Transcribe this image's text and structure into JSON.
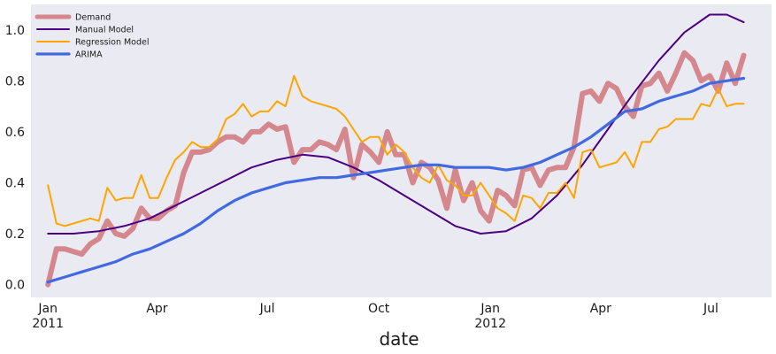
{
  "chart_data": {
    "type": "line",
    "title": "",
    "xlabel": "date",
    "ylabel": "",
    "ylim": [
      -0.05,
      1.1
    ],
    "grid": false,
    "legend_position": "top-left",
    "x_range": [
      "2010-12-18",
      "2012-08-20"
    ],
    "x_ticks": [
      {
        "date": "2011-01-01",
        "label": "Jan",
        "sublabel": "2011"
      },
      {
        "date": "2011-04-01",
        "label": "Apr",
        "sublabel": ""
      },
      {
        "date": "2011-07-01",
        "label": "Jul",
        "sublabel": ""
      },
      {
        "date": "2011-10-01",
        "label": "Oct",
        "sublabel": ""
      },
      {
        "date": "2012-01-01",
        "label": "Jan",
        "sublabel": "2012"
      },
      {
        "date": "2012-04-01",
        "label": "Apr",
        "sublabel": ""
      },
      {
        "date": "2012-07-01",
        "label": "Jul",
        "sublabel": ""
      }
    ],
    "y_ticks": [
      {
        "value": 0.0,
        "label": "0.0"
      },
      {
        "value": 0.2,
        "label": "0.2"
      },
      {
        "value": 0.4,
        "label": "0.4"
      },
      {
        "value": 0.6,
        "label": "0.6"
      },
      {
        "value": 0.8,
        "label": "0.8"
      },
      {
        "value": 1.0,
        "label": "1.0"
      }
    ],
    "series": [
      {
        "name": "Demand",
        "color": "#d4878d",
        "points": [
          [
            "2011-01-01",
            0.0
          ],
          [
            "2011-01-08",
            0.14
          ],
          [
            "2011-01-15",
            0.14
          ],
          [
            "2011-01-22",
            0.13
          ],
          [
            "2011-01-29",
            0.12
          ],
          [
            "2011-02-05",
            0.16
          ],
          [
            "2011-02-12",
            0.18
          ],
          [
            "2011-02-19",
            0.25
          ],
          [
            "2011-02-26",
            0.2
          ],
          [
            "2011-03-05",
            0.19
          ],
          [
            "2011-03-12",
            0.22
          ],
          [
            "2011-03-19",
            0.3
          ],
          [
            "2011-03-26",
            0.26
          ],
          [
            "2011-04-02",
            0.26
          ],
          [
            "2011-04-09",
            0.29
          ],
          [
            "2011-04-16",
            0.31
          ],
          [
            "2011-04-23",
            0.44
          ],
          [
            "2011-04-30",
            0.52
          ],
          [
            "2011-05-07",
            0.52
          ],
          [
            "2011-05-14",
            0.53
          ],
          [
            "2011-05-21",
            0.56
          ],
          [
            "2011-05-28",
            0.58
          ],
          [
            "2011-06-04",
            0.58
          ],
          [
            "2011-06-11",
            0.56
          ],
          [
            "2011-06-18",
            0.6
          ],
          [
            "2011-06-25",
            0.6
          ],
          [
            "2011-07-02",
            0.63
          ],
          [
            "2011-07-09",
            0.61
          ],
          [
            "2011-07-16",
            0.62
          ],
          [
            "2011-07-23",
            0.48
          ],
          [
            "2011-07-30",
            0.53
          ],
          [
            "2011-08-06",
            0.53
          ],
          [
            "2011-08-13",
            0.56
          ],
          [
            "2011-08-20",
            0.55
          ],
          [
            "2011-08-27",
            0.53
          ],
          [
            "2011-09-03",
            0.61
          ],
          [
            "2011-09-10",
            0.42
          ],
          [
            "2011-09-17",
            0.55
          ],
          [
            "2011-09-24",
            0.52
          ],
          [
            "2011-10-01",
            0.48
          ],
          [
            "2011-10-08",
            0.6
          ],
          [
            "2011-10-15",
            0.51
          ],
          [
            "2011-10-22",
            0.51
          ],
          [
            "2011-10-29",
            0.4
          ],
          [
            "2011-11-05",
            0.48
          ],
          [
            "2011-11-12",
            0.46
          ],
          [
            "2011-11-19",
            0.41
          ],
          [
            "2011-11-26",
            0.3
          ],
          [
            "2011-12-03",
            0.45
          ],
          [
            "2011-12-10",
            0.33
          ],
          [
            "2011-12-17",
            0.4
          ],
          [
            "2011-12-24",
            0.29
          ],
          [
            "2011-12-31",
            0.25
          ],
          [
            "2012-01-07",
            0.37
          ],
          [
            "2012-01-14",
            0.35
          ],
          [
            "2012-01-21",
            0.31
          ],
          [
            "2012-01-28",
            0.45
          ],
          [
            "2012-02-04",
            0.46
          ],
          [
            "2012-02-11",
            0.39
          ],
          [
            "2012-02-18",
            0.45
          ],
          [
            "2012-02-25",
            0.46
          ],
          [
            "2012-03-03",
            0.46
          ],
          [
            "2012-03-10",
            0.54
          ],
          [
            "2012-03-17",
            0.75
          ],
          [
            "2012-03-24",
            0.76
          ],
          [
            "2012-03-31",
            0.72
          ],
          [
            "2012-04-07",
            0.79
          ],
          [
            "2012-04-14",
            0.77
          ],
          [
            "2012-04-21",
            0.7
          ],
          [
            "2012-04-28",
            0.66
          ],
          [
            "2012-05-05",
            0.78
          ],
          [
            "2012-05-12",
            0.79
          ],
          [
            "2012-05-19",
            0.83
          ],
          [
            "2012-05-26",
            0.76
          ],
          [
            "2012-06-02",
            0.83
          ],
          [
            "2012-06-09",
            0.91
          ],
          [
            "2012-06-16",
            0.88
          ],
          [
            "2012-06-23",
            0.8
          ],
          [
            "2012-06-30",
            0.82
          ],
          [
            "2012-07-07",
            0.76
          ],
          [
            "2012-07-14",
            0.87
          ],
          [
            "2012-07-21",
            0.79
          ],
          [
            "2012-07-28",
            0.9
          ]
        ]
      },
      {
        "name": "Manual Model",
        "color": "#4b0082",
        "points": [
          [
            "2011-01-01",
            0.2
          ],
          [
            "2011-01-22",
            0.2
          ],
          [
            "2011-02-12",
            0.21
          ],
          [
            "2011-03-05",
            0.23
          ],
          [
            "2011-03-26",
            0.26
          ],
          [
            "2011-04-16",
            0.31
          ],
          [
            "2011-05-07",
            0.36
          ],
          [
            "2011-05-28",
            0.41
          ],
          [
            "2011-06-18",
            0.46
          ],
          [
            "2011-07-09",
            0.49
          ],
          [
            "2011-07-30",
            0.51
          ],
          [
            "2011-08-20",
            0.5
          ],
          [
            "2011-09-10",
            0.46
          ],
          [
            "2011-10-01",
            0.41
          ],
          [
            "2011-10-22",
            0.35
          ],
          [
            "2011-11-12",
            0.29
          ],
          [
            "2011-12-03",
            0.23
          ],
          [
            "2011-12-24",
            0.2
          ],
          [
            "2012-01-14",
            0.21
          ],
          [
            "2012-02-04",
            0.26
          ],
          [
            "2012-02-25",
            0.35
          ],
          [
            "2012-03-17",
            0.47
          ],
          [
            "2012-04-07",
            0.61
          ],
          [
            "2012-04-28",
            0.75
          ],
          [
            "2012-05-19",
            0.88
          ],
          [
            "2012-06-09",
            0.99
          ],
          [
            "2012-06-30",
            1.06
          ],
          [
            "2012-07-14",
            1.06
          ],
          [
            "2012-07-28",
            1.03
          ]
        ]
      },
      {
        "name": "Regression Model",
        "color": "#ffa500",
        "points": [
          [
            "2011-01-01",
            0.39
          ],
          [
            "2011-01-08",
            0.24
          ],
          [
            "2011-01-15",
            0.23
          ],
          [
            "2011-01-22",
            0.24
          ],
          [
            "2011-01-29",
            0.25
          ],
          [
            "2011-02-05",
            0.26
          ],
          [
            "2011-02-12",
            0.25
          ],
          [
            "2011-02-19",
            0.38
          ],
          [
            "2011-02-26",
            0.33
          ],
          [
            "2011-03-05",
            0.34
          ],
          [
            "2011-03-12",
            0.34
          ],
          [
            "2011-03-19",
            0.43
          ],
          [
            "2011-03-26",
            0.34
          ],
          [
            "2011-04-02",
            0.34
          ],
          [
            "2011-04-09",
            0.42
          ],
          [
            "2011-04-16",
            0.49
          ],
          [
            "2011-04-23",
            0.52
          ],
          [
            "2011-04-30",
            0.56
          ],
          [
            "2011-05-07",
            0.54
          ],
          [
            "2011-05-14",
            0.54
          ],
          [
            "2011-05-21",
            0.57
          ],
          [
            "2011-05-28",
            0.65
          ],
          [
            "2011-06-04",
            0.67
          ],
          [
            "2011-06-11",
            0.71
          ],
          [
            "2011-06-18",
            0.66
          ],
          [
            "2011-06-25",
            0.68
          ],
          [
            "2011-07-02",
            0.68
          ],
          [
            "2011-07-09",
            0.72
          ],
          [
            "2011-07-16",
            0.7
          ],
          [
            "2011-07-23",
            0.82
          ],
          [
            "2011-07-30",
            0.74
          ],
          [
            "2011-08-06",
            0.72
          ],
          [
            "2011-08-13",
            0.71
          ],
          [
            "2011-08-20",
            0.7
          ],
          [
            "2011-08-27",
            0.69
          ],
          [
            "2011-09-03",
            0.66
          ],
          [
            "2011-09-10",
            0.61
          ],
          [
            "2011-09-17",
            0.56
          ],
          [
            "2011-09-24",
            0.58
          ],
          [
            "2011-10-01",
            0.58
          ],
          [
            "2011-10-08",
            0.51
          ],
          [
            "2011-10-15",
            0.55
          ],
          [
            "2011-10-22",
            0.52
          ],
          [
            "2011-10-29",
            0.46
          ],
          [
            "2011-11-05",
            0.42
          ],
          [
            "2011-11-12",
            0.4
          ],
          [
            "2011-11-19",
            0.47
          ],
          [
            "2011-11-26",
            0.41
          ],
          [
            "2011-12-03",
            0.39
          ],
          [
            "2011-12-10",
            0.35
          ],
          [
            "2011-12-17",
            0.35
          ],
          [
            "2011-12-24",
            0.4
          ],
          [
            "2011-12-31",
            0.35
          ],
          [
            "2012-01-07",
            0.3
          ],
          [
            "2012-01-14",
            0.28
          ],
          [
            "2012-01-21",
            0.25
          ],
          [
            "2012-01-28",
            0.35
          ],
          [
            "2012-02-04",
            0.34
          ],
          [
            "2012-02-11",
            0.3
          ],
          [
            "2012-02-18",
            0.36
          ],
          [
            "2012-02-25",
            0.36
          ],
          [
            "2012-03-03",
            0.4
          ],
          [
            "2012-03-10",
            0.34
          ],
          [
            "2012-03-17",
            0.52
          ],
          [
            "2012-03-24",
            0.53
          ],
          [
            "2012-03-31",
            0.46
          ],
          [
            "2012-04-07",
            0.47
          ],
          [
            "2012-04-14",
            0.48
          ],
          [
            "2012-04-21",
            0.52
          ],
          [
            "2012-04-28",
            0.46
          ],
          [
            "2012-05-05",
            0.56
          ],
          [
            "2012-05-12",
            0.56
          ],
          [
            "2012-05-19",
            0.61
          ],
          [
            "2012-05-26",
            0.62
          ],
          [
            "2012-06-02",
            0.65
          ],
          [
            "2012-06-09",
            0.65
          ],
          [
            "2012-06-16",
            0.65
          ],
          [
            "2012-06-23",
            0.71
          ],
          [
            "2012-06-30",
            0.7
          ],
          [
            "2012-07-07",
            0.77
          ],
          [
            "2012-07-14",
            0.7
          ],
          [
            "2012-07-21",
            0.71
          ],
          [
            "2012-07-28",
            0.71
          ]
        ]
      },
      {
        "name": "ARIMA",
        "color": "#4169e1",
        "points": [
          [
            "2011-01-01",
            0.01
          ],
          [
            "2011-01-15",
            0.03
          ],
          [
            "2011-01-29",
            0.05
          ],
          [
            "2011-02-12",
            0.07
          ],
          [
            "2011-02-26",
            0.09
          ],
          [
            "2011-03-12",
            0.12
          ],
          [
            "2011-03-26",
            0.14
          ],
          [
            "2011-04-09",
            0.17
          ],
          [
            "2011-04-23",
            0.2
          ],
          [
            "2011-05-07",
            0.24
          ],
          [
            "2011-05-21",
            0.29
          ],
          [
            "2011-06-04",
            0.33
          ],
          [
            "2011-06-18",
            0.36
          ],
          [
            "2011-07-02",
            0.38
          ],
          [
            "2011-07-16",
            0.4
          ],
          [
            "2011-07-30",
            0.41
          ],
          [
            "2011-08-13",
            0.42
          ],
          [
            "2011-08-27",
            0.42
          ],
          [
            "2011-09-10",
            0.43
          ],
          [
            "2011-09-24",
            0.44
          ],
          [
            "2011-10-08",
            0.45
          ],
          [
            "2011-10-22",
            0.46
          ],
          [
            "2011-11-05",
            0.47
          ],
          [
            "2011-11-19",
            0.47
          ],
          [
            "2011-12-03",
            0.46
          ],
          [
            "2011-12-17",
            0.46
          ],
          [
            "2011-12-31",
            0.46
          ],
          [
            "2012-01-14",
            0.45
          ],
          [
            "2012-01-28",
            0.46
          ],
          [
            "2012-02-11",
            0.48
          ],
          [
            "2012-02-25",
            0.51
          ],
          [
            "2012-03-10",
            0.54
          ],
          [
            "2012-03-24",
            0.58
          ],
          [
            "2012-04-07",
            0.63
          ],
          [
            "2012-04-21",
            0.68
          ],
          [
            "2012-05-05",
            0.69
          ],
          [
            "2012-05-19",
            0.72
          ],
          [
            "2012-06-02",
            0.74
          ],
          [
            "2012-06-16",
            0.76
          ],
          [
            "2012-06-30",
            0.79
          ],
          [
            "2012-07-14",
            0.8
          ],
          [
            "2012-07-28",
            0.81
          ]
        ]
      }
    ]
  }
}
